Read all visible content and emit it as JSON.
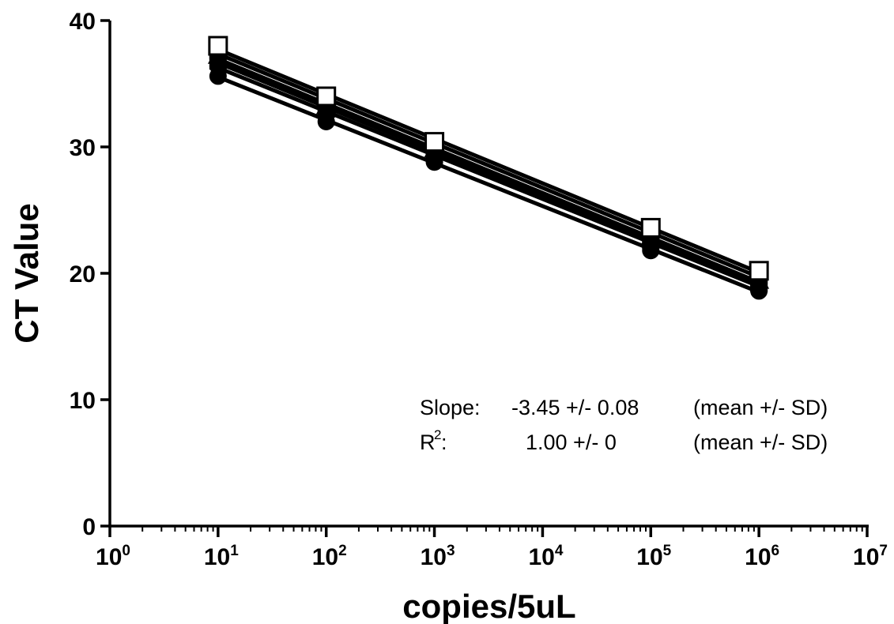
{
  "chart_data": {
    "type": "scatter",
    "xlabel": "copies/5uL",
    "ylabel": "CT Value",
    "x_scale": "log10",
    "xlim": [
      1,
      10000000
    ],
    "ylim": [
      0,
      40
    ],
    "y_ticks": [
      "0",
      "10",
      "20",
      "30",
      "40"
    ],
    "x_ticks": [
      {
        "base": "10",
        "exp": "0"
      },
      {
        "base": "10",
        "exp": "1"
      },
      {
        "base": "10",
        "exp": "2"
      },
      {
        "base": "10",
        "exp": "3"
      },
      {
        "base": "10",
        "exp": "4"
      },
      {
        "base": "10",
        "exp": "5"
      },
      {
        "base": "10",
        "exp": "6"
      },
      {
        "base": "10",
        "exp": "7"
      }
    ],
    "x": [
      10,
      100,
      1000,
      100000,
      1000000
    ],
    "series": [
      {
        "marker": "circle",
        "values": [
          35.6,
          32.0,
          28.8,
          21.8,
          18.6
        ]
      },
      {
        "marker": "circle",
        "values": [
          36.4,
          32.6,
          29.4,
          22.4,
          19.0
        ]
      },
      {
        "marker": "triangle",
        "values": [
          37.2,
          33.2,
          29.8,
          22.8,
          19.4
        ]
      },
      {
        "marker": "square",
        "values": [
          36.8,
          33.0,
          29.6,
          22.6,
          19.2
        ]
      },
      {
        "marker": "square",
        "values": [
          37.6,
          33.6,
          30.2,
          23.2,
          19.8
        ]
      },
      {
        "marker": "square-open",
        "values": [
          38.0,
          34.0,
          30.4,
          23.6,
          20.2
        ]
      }
    ],
    "grid": false,
    "annotation": {
      "line1_label": "Slope:",
      "line1_value": "-3.45 +/- 0.08",
      "line1_note": "(mean +/- SD)",
      "line2_label": "R",
      "line2_sup": "2",
      "line2_colon": ":",
      "line2_value": "1.00 +/- 0",
      "line2_note": "(mean +/-  SD)"
    }
  }
}
